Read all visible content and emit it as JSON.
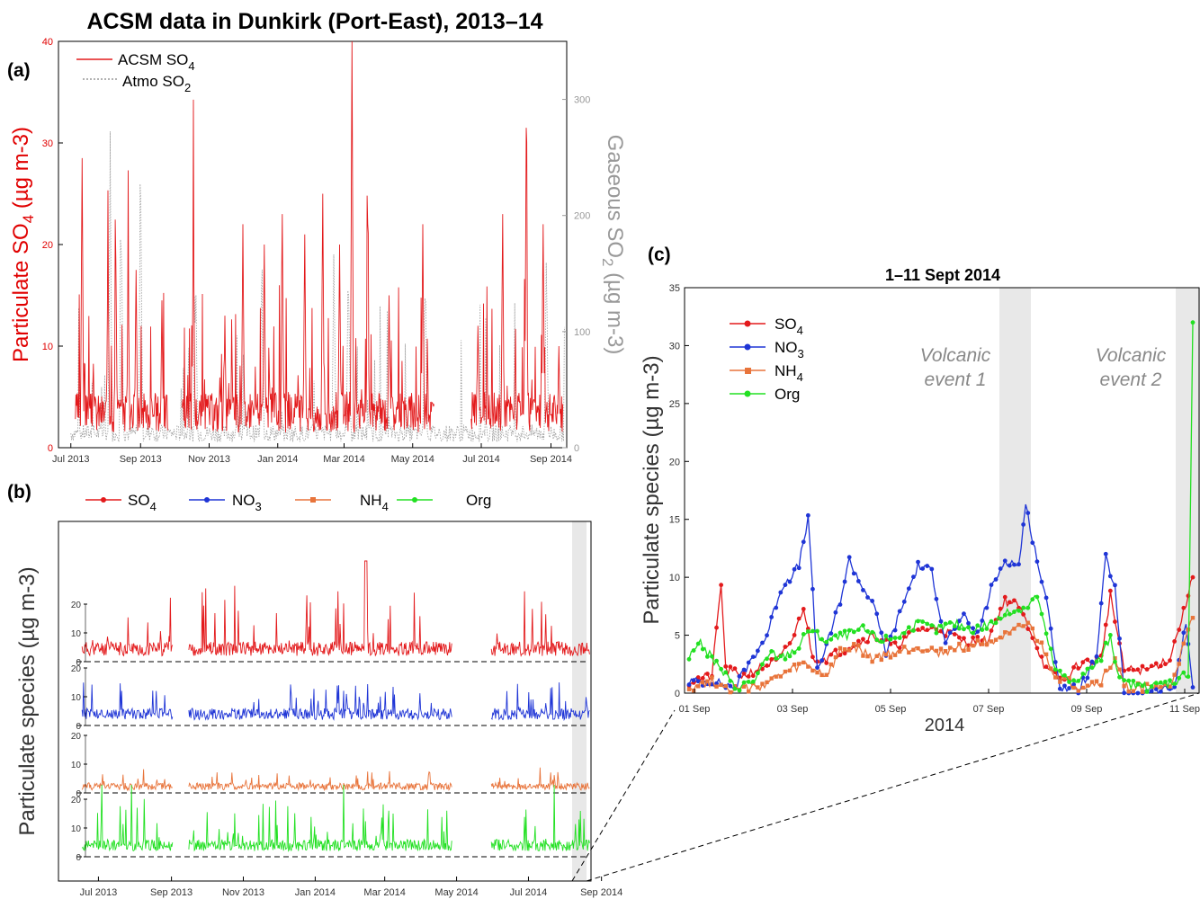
{
  "title": "ACSM data in Dunkirk (Port-East), 2013–14",
  "colors": {
    "SO4": "#e31a1c",
    "NO3": "#1f35d6",
    "NH4": "#e8743b",
    "Org": "#22e022",
    "SO2": "#9a9a9a",
    "shade": "#e8e8e8"
  },
  "chart_data": [
    {
      "panel": "(a)",
      "type": "line",
      "x_tick_labels": [
        "Jul 2013",
        "Sep 2013",
        "Nov 2013",
        "Jan 2014",
        "Mar 2014",
        "May 2014",
        "Jul 2014",
        "Sep 2014"
      ],
      "x_range": [
        "2013-06-20",
        "2014-09-15"
      ],
      "ylabel_left": "Particulate SO4 (µg m-3)",
      "ylabel_right": "Gaseous SO2 (µg m-3)",
      "ylim_left": [
        0,
        40
      ],
      "ylim_right": [
        0,
        350
      ],
      "yticks_left": [
        "0",
        "10",
        "20",
        "30",
        "40"
      ],
      "yticks_right": [
        "0",
        "100",
        "200",
        "300"
      ],
      "legend": [
        "ACSM SO4",
        "Atmo SO2"
      ],
      "legend_position": "top-left",
      "series": [
        {
          "name": "ACSM SO4",
          "style": "solid",
          "color": "#e31a1c",
          "peaks": [
            {
              "x": "2013-07-11",
              "y": 28.5
            },
            {
              "x": "2013-08-03",
              "y": 20.5
            },
            {
              "x": "2013-08-10",
              "y": 18.5
            },
            {
              "x": "2013-08-21",
              "y": 18.3
            },
            {
              "x": "2013-08-28",
              "y": 17.5
            },
            {
              "x": "2013-09-20",
              "y": 14.5
            },
            {
              "x": "2013-10-18",
              "y": 24
            },
            {
              "x": "2013-11-15",
              "y": 13
            },
            {
              "x": "2013-12-01",
              "y": 22
            },
            {
              "x": "2013-12-20",
              "y": 20
            },
            {
              "x": "2014-01-05",
              "y": 23
            },
            {
              "x": "2014-01-25",
              "y": 21
            },
            {
              "x": "2014-02-10",
              "y": 25
            },
            {
              "x": "2014-02-25",
              "y": 20
            },
            {
              "x": "2014-03-08",
              "y": 40
            },
            {
              "x": "2014-03-22",
              "y": 22
            },
            {
              "x": "2014-04-10",
              "y": 15
            },
            {
              "x": "2014-05-10",
              "y": 22
            },
            {
              "x": "2014-06-28",
              "y": 12
            },
            {
              "x": "2014-07-20",
              "y": 23
            },
            {
              "x": "2014-08-10",
              "y": 31.5
            },
            {
              "x": "2014-08-25",
              "y": 22
            },
            {
              "x": "2014-09-08",
              "y": 10
            }
          ]
        },
        {
          "name": "Atmo SO2",
          "style": "dotted",
          "color": "#9a9a9a",
          "peaks": [
            {
              "x": "2013-08-05",
              "y": 310
            },
            {
              "x": "2013-08-15",
              "y": 210
            },
            {
              "x": "2013-09-01",
              "y": 285
            },
            {
              "x": "2013-10-20",
              "y": 215
            },
            {
              "x": "2013-12-18",
              "y": 205
            },
            {
              "x": "2014-02-20",
              "y": 205
            },
            {
              "x": "2014-03-05",
              "y": 200
            },
            {
              "x": "2014-05-12",
              "y": 205
            },
            {
              "x": "2014-08-28",
              "y": 220
            }
          ]
        }
      ]
    },
    {
      "panel": "(b)",
      "type": "line",
      "x_tick_labels": [
        "Jul 2013",
        "Sep 2013",
        "Nov 2013",
        "Jan 2014",
        "Mar 2014",
        "May 2014",
        "Jul 2014",
        "Sep 2014"
      ],
      "ylabel": "Particulate species (µg m-3)",
      "stacked_panels_ylim": [
        0,
        20
      ],
      "yticks": [
        "0",
        "10",
        "20"
      ],
      "legend": [
        "SO4",
        "NO3",
        "NH4",
        "Org"
      ],
      "legend_position": "top",
      "shaded_region": [
        "2014-09-01",
        "2014-09-11"
      ],
      "series": [
        {
          "name": "SO4",
          "max": 35
        },
        {
          "name": "NO3",
          "max": 18
        },
        {
          "name": "NH4",
          "max": 10
        },
        {
          "name": "Org",
          "max": 25
        }
      ]
    },
    {
      "panel": "(c)",
      "type": "line",
      "title": "1–11 Sept 2014",
      "x_tick_labels": [
        "01 Sep",
        "03 Sep",
        "05 Sep",
        "07 Sep",
        "09 Sep",
        "11 Sep"
      ],
      "xlabel": "2014",
      "ylabel": "Particulate species (µg m-3)",
      "ylim": [
        0,
        35
      ],
      "yticks": [
        "0",
        "5",
        "10",
        "15",
        "20",
        "25",
        "30",
        "35"
      ],
      "legend": [
        "SO4",
        "NO3",
        "NH4",
        "Org"
      ],
      "legend_position": "top-left",
      "shaded_regions": [
        [
          "2014-09-07 07:00",
          "2014-09-08 00:00"
        ],
        [
          "2014-09-10 23:00",
          "2014-09-11 12:00"
        ]
      ],
      "annotations": [
        "Volcanic event 1",
        "Volcanic event 2"
      ],
      "series": [
        {
          "name": "SO4",
          "marker": "circle",
          "keypoints": [
            [
              0,
              1
            ],
            [
              0.5,
              1.5
            ],
            [
              0.7,
              9.5
            ],
            [
              0.8,
              2
            ],
            [
              1.2,
              1.5
            ],
            [
              2.0,
              3
            ],
            [
              2.3,
              5
            ],
            [
              2.5,
              7.5
            ],
            [
              2.7,
              3
            ],
            [
              3.0,
              3
            ],
            [
              3.5,
              4
            ],
            [
              4.0,
              5
            ],
            [
              4.5,
              4
            ],
            [
              5.0,
              5.5
            ],
            [
              5.5,
              5.5
            ],
            [
              6.0,
              4.5
            ],
            [
              6.5,
              4.5
            ],
            [
              6.9,
              8
            ],
            [
              7.2,
              7.5
            ],
            [
              7.5,
              5
            ],
            [
              7.8,
              2
            ],
            [
              8.2,
              1
            ],
            [
              8.5,
              2.5
            ],
            [
              9.0,
              3
            ],
            [
              9.2,
              8.5
            ],
            [
              9.5,
              2
            ],
            [
              10.0,
              2
            ],
            [
              10.5,
              3
            ],
            [
              10.8,
              7
            ],
            [
              11.0,
              10
            ]
          ]
        },
        {
          "name": "NO3",
          "marker": "circle",
          "keypoints": [
            [
              0,
              1
            ],
            [
              0.5,
              1
            ],
            [
              1.0,
              0.5
            ],
            [
              1.3,
              2.5
            ],
            [
              1.7,
              5
            ],
            [
              2.0,
              9
            ],
            [
              2.4,
              11
            ],
            [
              2.6,
              15.2
            ],
            [
              2.8,
              2
            ],
            [
              3.0,
              4
            ],
            [
              3.3,
              8
            ],
            [
              3.5,
              11.5
            ],
            [
              3.8,
              9
            ],
            [
              4.0,
              8
            ],
            [
              4.3,
              3.5
            ],
            [
              4.7,
              8
            ],
            [
              5.0,
              11
            ],
            [
              5.3,
              10.5
            ],
            [
              5.6,
              4.5
            ],
            [
              6.0,
              6.5
            ],
            [
              6.3,
              5
            ],
            [
              6.6,
              9
            ],
            [
              6.9,
              11.5
            ],
            [
              7.2,
              11
            ],
            [
              7.35,
              16.2
            ],
            [
              7.6,
              11.5
            ],
            [
              7.8,
              8
            ],
            [
              8.1,
              0.5
            ],
            [
              8.5,
              0.3
            ],
            [
              8.9,
              3
            ],
            [
              9.1,
              11.8
            ],
            [
              9.3,
              9
            ],
            [
              9.5,
              0
            ],
            [
              10.0,
              0
            ],
            [
              10.6,
              0.5
            ],
            [
              10.85,
              6
            ],
            [
              11.0,
              0.5
            ]
          ]
        },
        {
          "name": "NH4",
          "marker": "square",
          "keypoints": [
            [
              0,
              0.5
            ],
            [
              0.5,
              1
            ],
            [
              1.0,
              0.3
            ],
            [
              1.5,
              0.5
            ],
            [
              2.0,
              1.5
            ],
            [
              2.5,
              2.5
            ],
            [
              3.0,
              1.5
            ],
            [
              3.3,
              3.5
            ],
            [
              3.6,
              4
            ],
            [
              4.0,
              3
            ],
            [
              4.5,
              3.5
            ],
            [
              5.0,
              4
            ],
            [
              5.5,
              3.5
            ],
            [
              6.0,
              4
            ],
            [
              6.5,
              4.5
            ],
            [
              7.0,
              5
            ],
            [
              7.4,
              6
            ],
            [
              7.7,
              4
            ],
            [
              8.0,
              1.5
            ],
            [
              8.5,
              0.5
            ],
            [
              9.0,
              1
            ],
            [
              9.3,
              3
            ],
            [
              9.5,
              0.5
            ],
            [
              10.0,
              0.5
            ],
            [
              10.5,
              0.5
            ],
            [
              10.8,
              4
            ],
            [
              11.0,
              6.5
            ]
          ]
        },
        {
          "name": "Org",
          "marker": "circle",
          "keypoints": [
            [
              0,
              3
            ],
            [
              0.2,
              4.5
            ],
            [
              0.5,
              3
            ],
            [
              0.8,
              1.5
            ],
            [
              1.0,
              0.5
            ],
            [
              1.4,
              1
            ],
            [
              1.8,
              3.5
            ],
            [
              2.0,
              3
            ],
            [
              2.4,
              4
            ],
            [
              2.6,
              5.5
            ],
            [
              3.0,
              4.5
            ],
            [
              3.4,
              5
            ],
            [
              3.8,
              5.5
            ],
            [
              4.2,
              4.5
            ],
            [
              4.6,
              5
            ],
            [
              5.0,
              6
            ],
            [
              5.4,
              5.5
            ],
            [
              5.8,
              6
            ],
            [
              6.2,
              5.5
            ],
            [
              6.6,
              6
            ],
            [
              7.0,
              7
            ],
            [
              7.4,
              7.5
            ],
            [
              7.6,
              8.5
            ],
            [
              7.8,
              5
            ],
            [
              8.0,
              2
            ],
            [
              8.3,
              1
            ],
            [
              8.6,
              1.5
            ],
            [
              9.0,
              3
            ],
            [
              9.2,
              5
            ],
            [
              9.4,
              1
            ],
            [
              10.0,
              0.5
            ],
            [
              10.6,
              1
            ],
            [
              10.9,
              1.8
            ],
            [
              11.0,
              32
            ]
          ]
        }
      ]
    }
  ]
}
